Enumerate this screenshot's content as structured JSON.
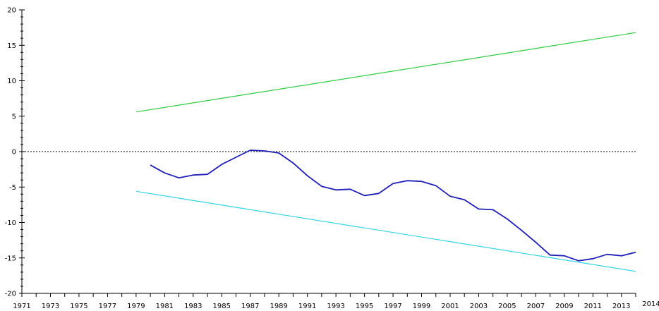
{
  "chart_data": {
    "type": "line",
    "xlim": [
      1971,
      2014
    ],
    "ylim": [
      -20,
      20
    ],
    "y_ticks": [
      20,
      15,
      10,
      5,
      0,
      -5,
      -10,
      -15,
      -20
    ],
    "x_tick_labels": [
      "1971",
      "1973",
      "1975",
      "1977",
      "1979",
      "1981",
      "1983",
      "1985",
      "1987",
      "1989",
      "1991",
      "1993",
      "1995",
      "1997",
      "1999",
      "2001",
      "2003",
      "2005",
      "2007",
      "2009",
      "2011",
      "2013"
    ],
    "x_end_label": "2014",
    "grid": false,
    "legend": "none",
    "zero_line": {
      "y": 0,
      "style": "dotted",
      "color": "#333333"
    },
    "series": [
      {
        "color": "#2ecc40",
        "x": [
          1979,
          2014
        ],
        "y": [
          5.6,
          16.8
        ]
      },
      {
        "color": "#2fd3e6",
        "x": [
          1979,
          2014
        ],
        "y": [
          -5.6,
          -16.9
        ]
      },
      {
        "color": "#1f1fb8",
        "x": [
          1980,
          1981,
          1982,
          1983,
          1984,
          1985,
          1986,
          1987,
          1988,
          1989,
          1990,
          1991,
          1992,
          1993,
          1994,
          1995,
          1996,
          1997,
          1998,
          1999,
          2000,
          2001,
          2002,
          2003,
          2004,
          2005,
          2006,
          2007,
          2008,
          2009,
          2010,
          2011,
          2012,
          2013,
          2014
        ],
        "y": [
          -1.9,
          -3.0,
          -3.7,
          -3.3,
          -3.2,
          -1.8,
          -0.8,
          0.2,
          0.1,
          -0.2,
          -1.6,
          -3.4,
          -4.9,
          -5.4,
          -5.3,
          -6.2,
          -5.9,
          -4.5,
          -4.1,
          -4.2,
          -4.8,
          -6.3,
          -6.8,
          -8.1,
          -8.2,
          -9.5,
          -11.1,
          -12.8,
          -14.6,
          -14.7,
          -15.4,
          -15.1,
          -14.5,
          -14.7,
          -14.2
        ]
      }
    ]
  }
}
